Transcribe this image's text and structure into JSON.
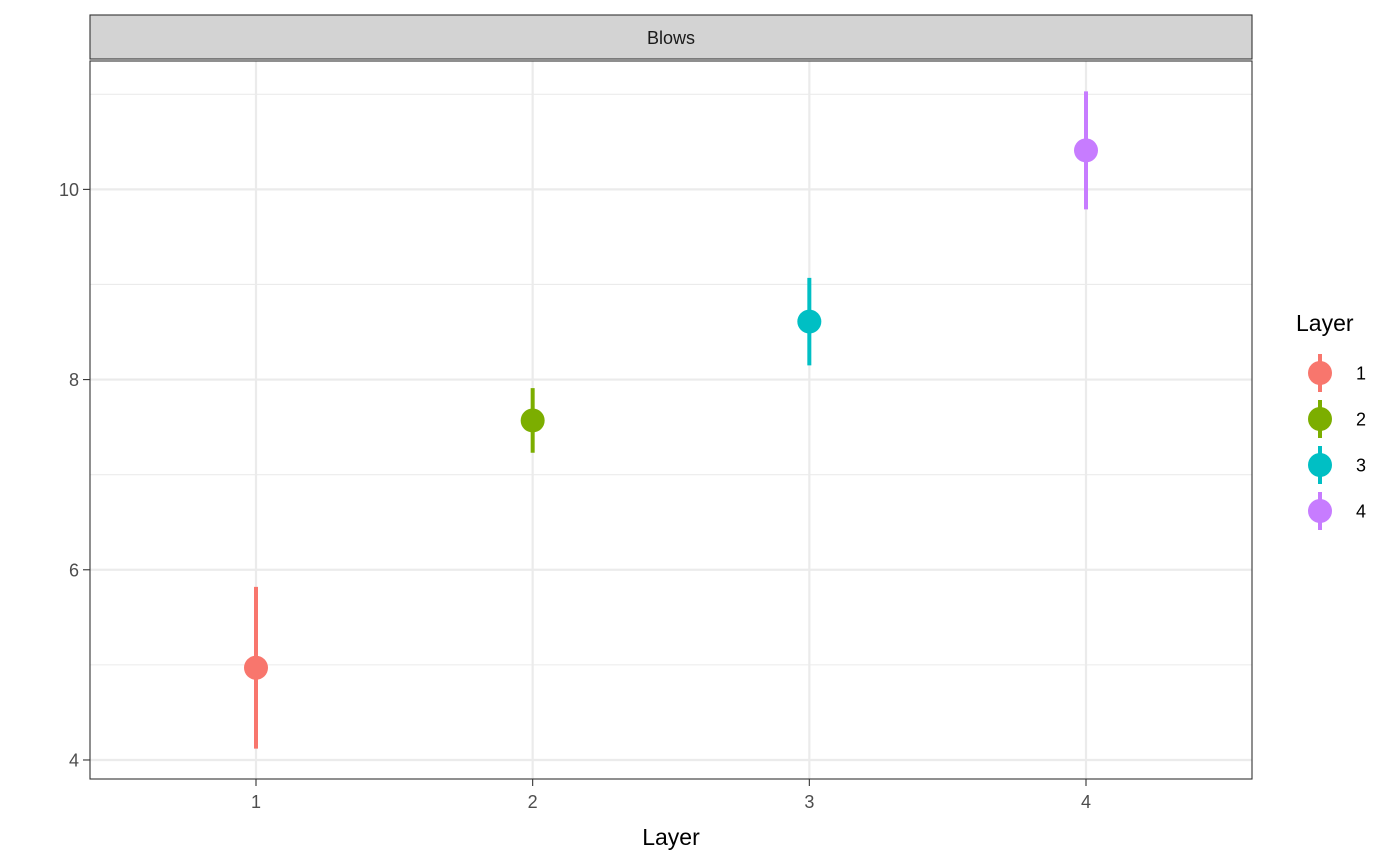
{
  "chart_data": {
    "type": "scatter",
    "facet_label": "Blows",
    "xlabel": "Layer",
    "ylabel": "",
    "x_categories": [
      "1",
      "2",
      "3",
      "4"
    ],
    "xlim": [
      0.4,
      4.6
    ],
    "ylim": [
      3.8,
      11.35
    ],
    "y_ticks_major": [
      4,
      6,
      8,
      10
    ],
    "y_ticks_minor": [
      5,
      7,
      9,
      11
    ],
    "grid": true,
    "legend": {
      "title": "Layer",
      "position": "right",
      "entries": [
        "1",
        "2",
        "3",
        "4"
      ]
    },
    "series": [
      {
        "name": "1",
        "x": 1,
        "y": 4.97,
        "ymin": 4.12,
        "ymax": 5.82,
        "color": "#F8766D"
      },
      {
        "name": "2",
        "x": 2,
        "y": 7.57,
        "ymin": 7.23,
        "ymax": 7.91,
        "color": "#7CAE00"
      },
      {
        "name": "3",
        "x": 3,
        "y": 8.61,
        "ymin": 8.15,
        "ymax": 9.07,
        "color": "#00BFC4"
      },
      {
        "name": "4",
        "x": 4,
        "y": 10.41,
        "ymin": 9.79,
        "ymax": 11.03,
        "color": "#C77CFF"
      }
    ]
  }
}
